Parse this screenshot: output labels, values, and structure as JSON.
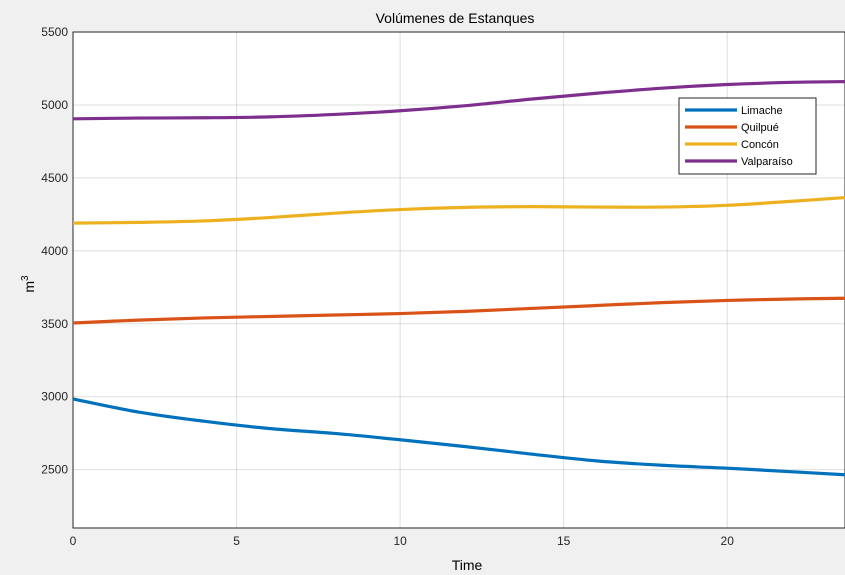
{
  "chart_data": {
    "type": "line",
    "title": "Volúmenes de Estanques",
    "xlabel": "Time",
    "ylabel": "m",
    "ylabel_superscript": "3",
    "xlim": [
      0,
      23.6
    ],
    "ylim": [
      2100,
      5500
    ],
    "xticks": [
      0,
      5,
      10,
      15,
      20
    ],
    "yticks": [
      2500,
      3000,
      3500,
      4000,
      4500,
      5000,
      5500
    ],
    "grid": true,
    "legend_position": "top-right",
    "x": [
      0,
      2,
      4,
      6,
      8,
      10,
      12,
      14,
      16,
      18,
      20,
      22,
      23.6
    ],
    "series": [
      {
        "name": "Limache",
        "color": "#0072BD",
        "values": [
          2985,
          2895,
          2832,
          2782,
          2748,
          2705,
          2658,
          2607,
          2560,
          2530,
          2510,
          2485,
          2465
        ]
      },
      {
        "name": "Quilpué",
        "color": "#D95319",
        "values": [
          3505,
          3525,
          3540,
          3550,
          3560,
          3570,
          3585,
          3605,
          3625,
          3645,
          3660,
          3670,
          3675
        ]
      },
      {
        "name": "Concón",
        "color": "#EDB120",
        "values": [
          4190,
          4195,
          4205,
          4228,
          4258,
          4283,
          4298,
          4303,
          4300,
          4300,
          4312,
          4340,
          4365
        ]
      },
      {
        "name": "Valparaíso",
        "color": "#7E2F8E",
        "values": [
          4905,
          4910,
          4912,
          4918,
          4935,
          4960,
          4995,
          5040,
          5080,
          5115,
          5140,
          5155,
          5160
        ]
      }
    ]
  }
}
